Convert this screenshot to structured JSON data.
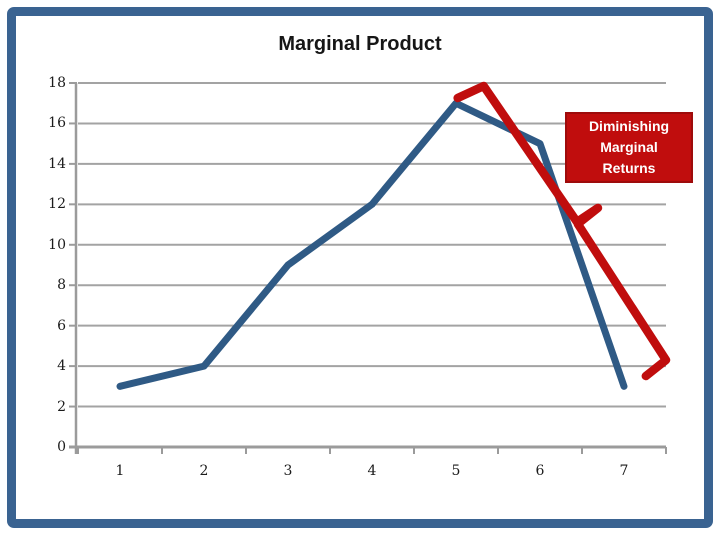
{
  "title": "Marginal Product",
  "annotation_box": {
    "lines": [
      "Diminishing",
      "Marginal",
      "Returns"
    ]
  },
  "colors": {
    "frame_blue": "#3A6391",
    "series_blue": "#2F5A85",
    "annotation_red": "#C00D0D",
    "gridline_gray": "#A3A3A3",
    "axis_gray": "#9B9B9B",
    "text_black": "#161616",
    "callout_text": "#FFFFFF"
  },
  "chart_data": {
    "type": "line",
    "title": "Marginal Product",
    "categories": [
      1,
      2,
      3,
      4,
      5,
      6,
      7
    ],
    "series": [
      {
        "name": "Marginal Product",
        "color": "#2F5A85",
        "values": [
          3,
          4,
          9,
          12,
          17,
          15,
          3
        ]
      }
    ],
    "xlabel": "",
    "ylabel": "",
    "ylim": [
      0,
      18
    ],
    "ytick_step": 2,
    "yticks": [
      0,
      2,
      4,
      6,
      8,
      10,
      12,
      14,
      16,
      18
    ],
    "grid": "horizontal",
    "legend": "none",
    "annotation": {
      "label": "Diminishing Marginal Returns",
      "color": "#C00D0D",
      "arrow_points_xy": [
        [
          5.02,
          17.26
        ],
        [
          5.33,
          17.85
        ],
        [
          6.44,
          11.13
        ],
        [
          6.69,
          11.82
        ],
        [
          6.45,
          11.03
        ],
        [
          7.5,
          4.3
        ],
        [
          7.26,
          3.51
        ]
      ]
    }
  }
}
